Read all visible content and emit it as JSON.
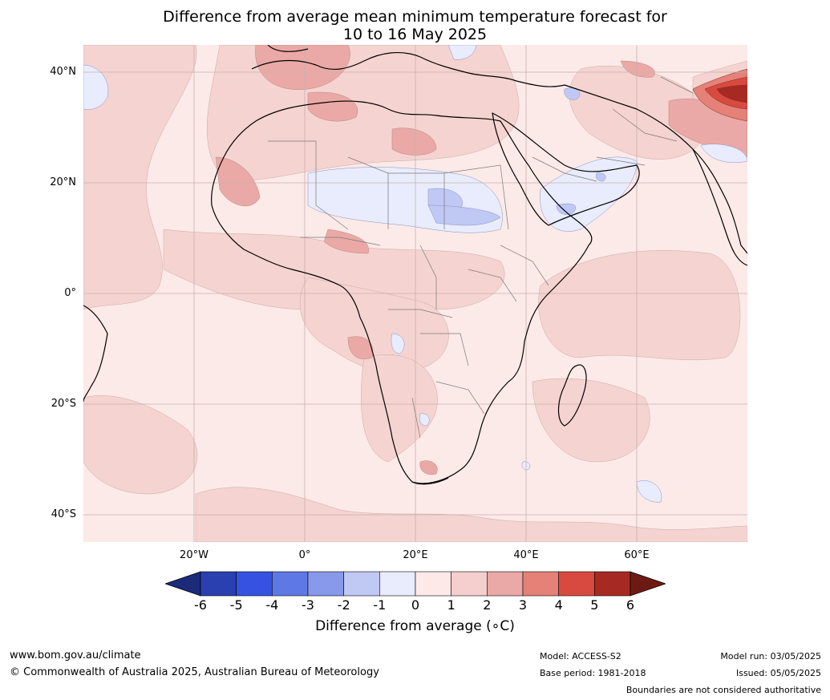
{
  "title_line1": "Difference from average mean minimum temperature forecast for",
  "title_line2": "10 to 16 May 2025",
  "lat_labels": [
    "40°N",
    "20°N",
    "0°",
    "20°S",
    "40°S"
  ],
  "lon_labels": [
    "20°W",
    "0°",
    "20°E",
    "40°E",
    "60°E"
  ],
  "colorbar": {
    "ticks": [
      "-6",
      "-5",
      "-4",
      "-3",
      "-2",
      "-1",
      "0",
      "1",
      "2",
      "3",
      "4",
      "5",
      "6"
    ],
    "label": "Difference from average (∘C)",
    "colors": [
      "#1c2a7a",
      "#2a3fb0",
      "#3552e0",
      "#5e78e6",
      "#8898ea",
      "#c0c8f4",
      "#e8ecfc",
      "#fce9e8",
      "#f4cfcd",
      "#eaa9a6",
      "#e58177",
      "#d84a3f",
      "#a62a22",
      "#6e1a14"
    ]
  },
  "footer": {
    "website": "www.bom.gov.au/climate",
    "copyright": "© Commonwealth of Australia 2025, Australian Bureau of Meteorology",
    "model": "Model: ACCESS-S2",
    "base_period": "Base period: 1981-2018",
    "model_run": "Model run: 03/05/2025",
    "issued": "Issued: 05/05/2025",
    "disclaimer": "Boundaries are not considered authoritative"
  }
}
